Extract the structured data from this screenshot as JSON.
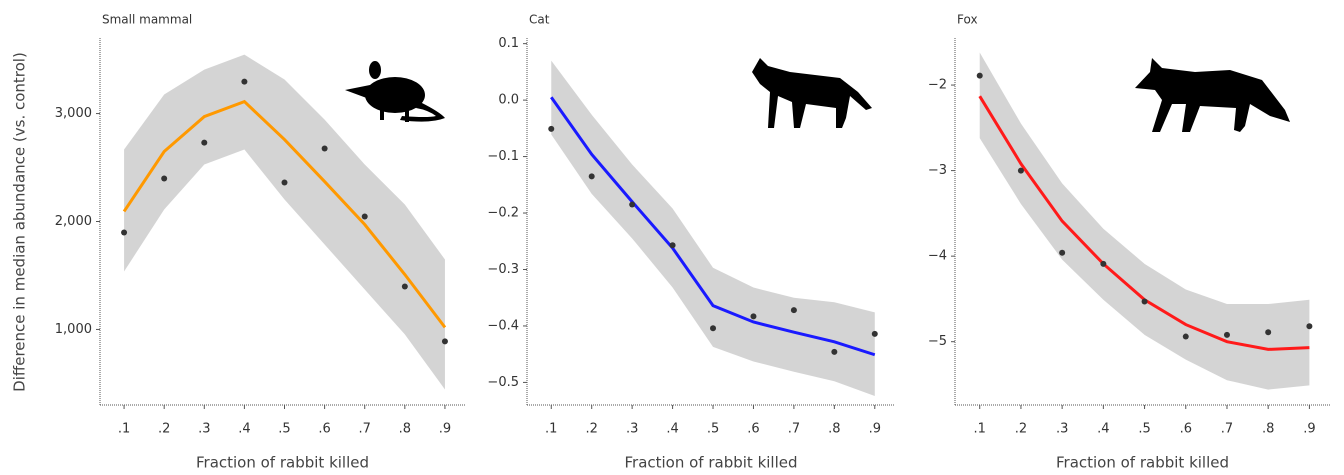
{
  "chart_data": [
    {
      "type": "line",
      "title": "Small mammal",
      "y_label": "Difference in median abundance (vs. control)",
      "x_label": "Fraction of rabbit killed",
      "x": [
        0.1,
        0.2,
        0.3,
        0.4,
        0.5,
        0.6,
        0.7,
        0.8,
        0.9
      ],
      "xlim": [
        0.04,
        0.95
      ],
      "xticks": [
        {
          "value": 0.1,
          "label": ".1"
        },
        {
          "value": 0.2,
          "label": ".2"
        },
        {
          "value": 0.3,
          "label": ".3"
        },
        {
          "value": 0.4,
          "label": ".4"
        },
        {
          "value": 0.5,
          "label": ".5"
        },
        {
          "value": 0.6,
          "label": ".6"
        },
        {
          "value": 0.7,
          "label": ".7"
        },
        {
          "value": 0.8,
          "label": ".8"
        },
        {
          "value": 0.9,
          "label": ".9"
        }
      ],
      "ylim": [
        300,
        3700
      ],
      "yticks": [
        {
          "value": 1000,
          "label": "1,000"
        },
        {
          "value": 2000,
          "label": "2,000"
        },
        {
          "value": 3000,
          "label": "3,000"
        }
      ],
      "points": {
        "color": "#333333",
        "values": [
          1898,
          2398,
          2731,
          3296,
          2361,
          2676,
          2046,
          1398,
          889
        ]
      },
      "fit": {
        "color": "#ff9900",
        "values": [
          2093,
          2648,
          2972,
          3111,
          2759,
          2370,
          1972,
          1509,
          1019
        ]
      },
      "ribbon": {
        "color": "#cccccc",
        "upper": [
          2667,
          3176,
          3407,
          3546,
          3315,
          2944,
          2528,
          2157,
          1648
        ],
        "lower": [
          1537,
          2111,
          2528,
          2667,
          2204,
          1787,
          1370,
          954,
          444
        ]
      }
    },
    {
      "type": "line",
      "title": "Cat",
      "x_label": "Fraction of rabbit killed",
      "x": [
        0.1,
        0.2,
        0.3,
        0.4,
        0.5,
        0.6,
        0.7,
        0.8,
        0.9
      ],
      "xlim": [
        0.04,
        0.95
      ],
      "xticks": [
        {
          "value": 0.1,
          "label": ".1"
        },
        {
          "value": 0.2,
          "label": ".2"
        },
        {
          "value": 0.3,
          "label": ".3"
        },
        {
          "value": 0.4,
          "label": ".4"
        },
        {
          "value": 0.5,
          "label": ".5"
        },
        {
          "value": 0.6,
          "label": ".6"
        },
        {
          "value": 0.7,
          "label": ".7"
        },
        {
          "value": 0.8,
          "label": ".8"
        },
        {
          "value": 0.9,
          "label": ".9"
        }
      ],
      "ylim": [
        -0.54,
        0.11
      ],
      "yticks": [
        0.1,
        {
          "value": 0,
          "label": "0.0"
        },
        {
          "value": -0.1,
          "label": "−0.1"
        },
        {
          "value": -0.2,
          "label": "−0.2"
        },
        {
          "value": -0.3,
          "label": "−0.3"
        },
        {
          "value": -0.4,
          "label": "−0.4"
        },
        {
          "value": -0.5,
          "label": "−0.5"
        }
      ],
      "points": {
        "color": "#333333",
        "values": [
          -0.051,
          -0.135,
          -0.185,
          -0.257,
          -0.404,
          -0.383,
          -0.372,
          -0.446,
          -0.414
        ]
      },
      "fit": {
        "color": "#1a1aff",
        "values": [
          0.005,
          -0.096,
          -0.18,
          -0.262,
          -0.364,
          -0.393,
          -0.411,
          -0.428,
          -0.451
        ]
      },
      "ribbon": {
        "color": "#cccccc",
        "upper": [
          0.07,
          -0.026,
          -0.114,
          -0.192,
          -0.297,
          -0.332,
          -0.35,
          -0.358,
          -0.376
        ],
        "lower": [
          -0.061,
          -0.166,
          -0.245,
          -0.332,
          -0.437,
          -0.463,
          -0.481,
          -0.498,
          -0.524
        ]
      }
    },
    {
      "type": "line",
      "title": "Fox",
      "x_label": "Fraction of rabbit killed",
      "x": [
        0.1,
        0.2,
        0.3,
        0.4,
        0.5,
        0.6,
        0.7,
        0.8,
        0.9
      ],
      "xlim": [
        0.04,
        0.95
      ],
      "xticks": [
        {
          "value": 0.1,
          "label": ".1"
        },
        {
          "value": 0.2,
          "label": ".2"
        },
        {
          "value": 0.3,
          "label": ".3"
        },
        {
          "value": 0.4,
          "label": ".4"
        },
        {
          "value": 0.5,
          "label": ".5"
        },
        {
          "value": 0.6,
          "label": ".6"
        },
        {
          "value": 0.7,
          "label": ".7"
        },
        {
          "value": 0.8,
          "label": ".8"
        },
        {
          "value": 0.9,
          "label": ".9"
        }
      ],
      "ylim": [
        -5.74,
        -1.45
      ],
      "yticks": [
        {
          "value": -2,
          "label": "−2"
        },
        {
          "value": -3,
          "label": "−3"
        },
        {
          "value": -4,
          "label": "−4"
        },
        {
          "value": -5,
          "label": "−5"
        }
      ],
      "points": {
        "color": "#333333",
        "values": [
          -1.89,
          -3.0,
          -3.96,
          -4.09,
          -4.53,
          -4.94,
          -4.92,
          -4.89,
          -4.82
        ]
      },
      "fit": {
        "color": "#ff1a1a",
        "values": [
          -2.13,
          -2.92,
          -3.59,
          -4.09,
          -4.51,
          -4.8,
          -5.0,
          -5.09,
          -5.07
        ]
      },
      "ribbon": {
        "color": "#cccccc",
        "upper": [
          -1.62,
          -2.45,
          -3.15,
          -3.68,
          -4.09,
          -4.39,
          -4.56,
          -4.56,
          -4.51
        ],
        "lower": [
          -2.62,
          -3.39,
          -4.04,
          -4.51,
          -4.92,
          -5.21,
          -5.45,
          -5.56,
          -5.51
        ]
      }
    }
  ]
}
